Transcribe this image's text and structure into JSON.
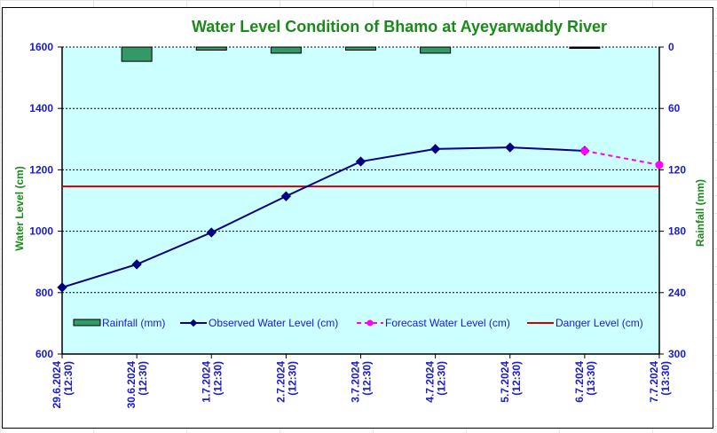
{
  "chart_data": {
    "type": "line",
    "title": "Water Level Condition of Bhamo at  Ayeyarwaddy River",
    "xlabel": "",
    "ylabel": "Water Level (cm)",
    "y2label": "Rainfall (mm)",
    "ylim": [
      600,
      1600
    ],
    "y2lim": [
      0,
      300
    ],
    "y2_inverted": true,
    "yticks": [
      600,
      800,
      1000,
      1200,
      1400,
      1600
    ],
    "y2ticks": [
      0,
      60,
      120,
      180,
      240,
      300
    ],
    "grid": true,
    "categories": [
      [
        "29.6.2024",
        "(12:30)"
      ],
      [
        "30.6.2024",
        "(12:30)"
      ],
      [
        "1.7.2024",
        "(12:30)"
      ],
      [
        "2.7.2024",
        "(12:30)"
      ],
      [
        "3.7.2024",
        "(12:30)"
      ],
      [
        "4.7.2024",
        "(12:30)"
      ],
      [
        "5.7.2024",
        "(12:30)"
      ],
      [
        "6.7.2024",
        "(13:30)"
      ],
      [
        "7.7.2024",
        "(13:30)"
      ]
    ],
    "series": [
      {
        "name": "Rainfall (mm)",
        "type": "bar",
        "axis": "right",
        "color": "#339966",
        "values": [
          0,
          14,
          3,
          6,
          3,
          6,
          0,
          1,
          null
        ]
      },
      {
        "name": "Observed Water Level (cm)",
        "type": "line",
        "axis": "left",
        "color": "#000080",
        "values": [
          817,
          892,
          996,
          1114,
          1227,
          1268,
          1273,
          1262,
          null
        ]
      },
      {
        "name": "Forecast Water Level (cm)",
        "type": "line",
        "axis": "left",
        "color": "#ff00ff",
        "dashed": true,
        "values": [
          null,
          null,
          null,
          null,
          null,
          null,
          null,
          1262,
          1216
        ]
      },
      {
        "name": "Danger Level (cm)",
        "type": "hline",
        "axis": "left",
        "color": "#cc0000",
        "value": 1146
      }
    ],
    "legend_position": "bottom-inside"
  },
  "colors": {
    "plot_bg": "#ccffff",
    "tick_text": "#1a1ad0",
    "title_text": "#1a8a1a"
  }
}
